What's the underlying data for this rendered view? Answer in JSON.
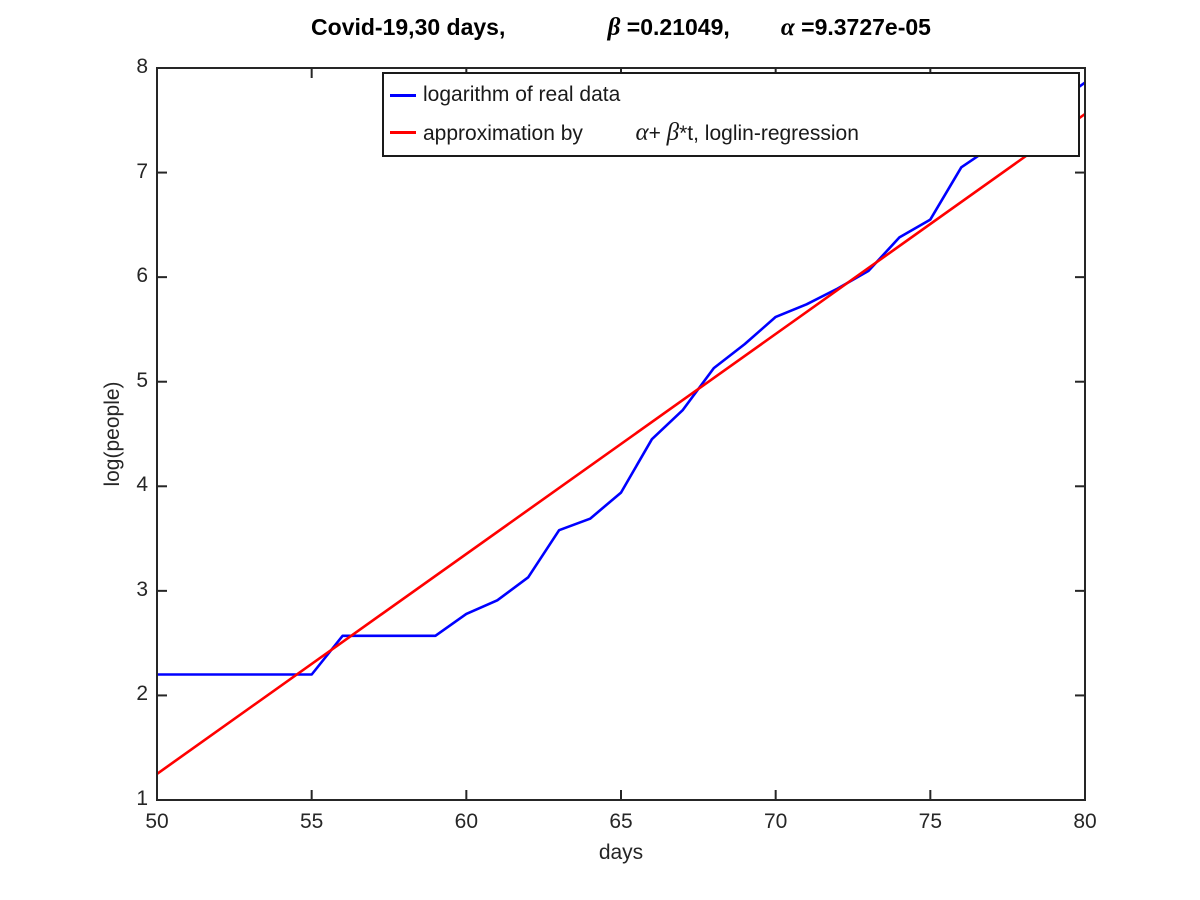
{
  "figure": {
    "background": "#ffffff",
    "axis_color": "#262626",
    "title_parts": [
      {
        "text": "Covid-19,30 days,",
        "greek": false
      },
      {
        "text": "                ",
        "greek": false
      },
      {
        "text": "β",
        "greek": true
      },
      {
        "text": " =0.21049,",
        "greek": false
      },
      {
        "text": "        ",
        "greek": false
      },
      {
        "text": "α",
        "greek": true
      },
      {
        "text": " =9.3727e-05",
        "greek": false
      }
    ],
    "xlabel": "days",
    "ylabel": "log(people)"
  },
  "legend": {
    "items": [
      {
        "color": "#0000ff",
        "parts": [
          {
            "text": "logarithm of real data",
            "greek": false
          }
        ]
      },
      {
        "color": "#ff0000",
        "parts": [
          {
            "text": "approximation by",
            "greek": false
          },
          {
            "text": "         ",
            "greek": false
          },
          {
            "text": "α",
            "greek": true
          },
          {
            "text": "+ ",
            "greek": false
          },
          {
            "text": "β",
            "greek": true
          },
          {
            "text": "*t, loglin-regression",
            "greek": false
          }
        ]
      }
    ]
  },
  "chart_data": {
    "type": "line",
    "title": "Covid-19,30 days, β =0.21049, α =9.3727e-05",
    "xlabel": "days",
    "ylabel": "log(people)",
    "xlim": [
      50,
      80
    ],
    "ylim": [
      1,
      8
    ],
    "xticks": [
      50,
      55,
      60,
      65,
      70,
      75,
      80
    ],
    "yticks": [
      1,
      2,
      3,
      4,
      5,
      6,
      7,
      8
    ],
    "grid": false,
    "legend_position": "inside-top",
    "beta": 0.21049,
    "alpha": 9.3727e-05,
    "series": [
      {
        "name": "logarithm of real data",
        "color": "#0000ff",
        "x": [
          50,
          51,
          52,
          53,
          54,
          55,
          56,
          57,
          58,
          59,
          60,
          61,
          62,
          63,
          64,
          65,
          66,
          67,
          68,
          69,
          70,
          71,
          72,
          73,
          74,
          75,
          76,
          77,
          78,
          79,
          80
        ],
        "y": [
          2.2,
          2.2,
          2.2,
          2.2,
          2.2,
          2.2,
          2.57,
          2.57,
          2.57,
          2.57,
          2.78,
          2.91,
          3.13,
          3.58,
          3.69,
          3.94,
          4.45,
          4.73,
          5.13,
          5.36,
          5.62,
          5.74,
          5.89,
          6.06,
          6.38,
          6.55,
          7.05,
          7.25,
          7.45,
          7.65,
          7.86
        ]
      },
      {
        "name": "approximation by α+ β*t, loglin-regression",
        "color": "#ff0000",
        "model": "y = ln(alpha) + beta*t",
        "x": [
          50,
          80
        ],
        "y": [
          1.25,
          7.56
        ]
      }
    ]
  }
}
